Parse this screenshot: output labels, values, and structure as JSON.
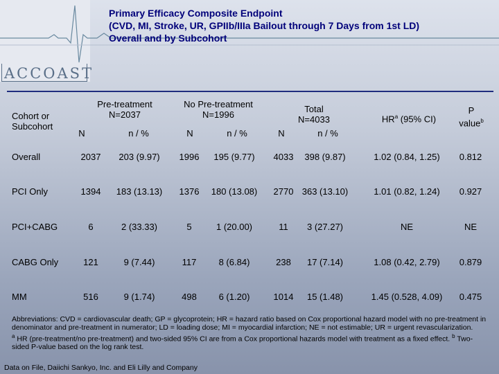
{
  "logo": {
    "text": "ACCOAST"
  },
  "title": {
    "line1": "Primary Efficacy Composite Endpoint",
    "line2": "(CVD, MI, Stroke, UR, GPIIb/IIIa Bailout through 7 Days from 1st LD)",
    "line3": "Overall and by Subcohort"
  },
  "table": {
    "headers": {
      "cohort_line1": "Cohort or",
      "cohort_line2": "Subcohort",
      "pre_line1": "Pre-treatment",
      "pre_line2": "N=2037",
      "pre_n": "N",
      "pre_pct": "n / %",
      "nopre_line1": "No Pre-treatment",
      "nopre_line2": "N=1996",
      "nopre_n": "N",
      "nopre_pct": "n / %",
      "total_line1": "Total",
      "total_line2": "N=4033",
      "total_n": "N",
      "total_pct": "n / %",
      "hr": "HR",
      "hr_sup": "a",
      "hr_rest": " (95% CI)",
      "p_line1": "P",
      "p_line2": "value",
      "p_sup": "b"
    },
    "rows": [
      {
        "label": "Overall",
        "pre_n": "2037",
        "pre_pct": "203 (9.97)",
        "nopre_n": "1996",
        "nopre_pct": "195 (9.77)",
        "total_n": "4033",
        "total_pct": "398 (9.87)",
        "hr": "1.02 (0.84, 1.25)",
        "p": "0.812"
      },
      {
        "label": "PCI Only",
        "pre_n": "1394",
        "pre_pct": "183 (13.13)",
        "nopre_n": "1376",
        "nopre_pct": "180 (13.08)",
        "total_n": "2770",
        "total_pct": "363 (13.10)",
        "hr": "1.01 (0.82, 1.24)",
        "p": "0.927"
      },
      {
        "label": "PCI+CABG",
        "pre_n": "6",
        "pre_pct": "2 (33.33)",
        "nopre_n": "5",
        "nopre_pct": "1 (20.00)",
        "total_n": "11",
        "total_pct": "3 (27.27)",
        "hr": "NE",
        "p": "NE"
      },
      {
        "label": "CABG Only",
        "pre_n": "121",
        "pre_pct": "9 (7.44)",
        "nopre_n": "117",
        "nopre_pct": "8 (6.84)",
        "total_n": "238",
        "total_pct": "17 (7.14)",
        "hr": "1.08 (0.42, 2.79)",
        "p": "0.879"
      },
      {
        "label": "MM",
        "pre_n": "516",
        "pre_pct": "9 (1.74)",
        "nopre_n": "498",
        "nopre_pct": "6 (1.20)",
        "total_n": "1014",
        "total_pct": "15 (1.48)",
        "hr": "1.45 (0.528, 4.09)",
        "p": "0.475"
      }
    ]
  },
  "footnote": {
    "abbreviations": "Abbreviations:  CVD = cardiovascular death; GP = glycoprotein; HR = hazard ratio based on Cox proportional hazard model with no pre-treatment in denominator and  pre-treatment  in numerator; LD = loading dose; MI = myocardial infarction; NE = not estimable; UR = urgent revascularization.",
    "note_a_mark": "a",
    "note_a": "  HR (pre-treatment/no pre-treatment) and two-sided 95% CI are from a Cox proportional hazards model with treatment as a fixed effect. ",
    "note_b_mark": "b",
    "note_b": "  Two-sided P-value based on the log rank test.",
    "source": "Data on File, Daiichi Sankyo, Inc. and Eli Lilly and Company"
  },
  "colors": {
    "title": "#00007a",
    "rule": "#1e2c7e",
    "logo": "#5a6f88"
  }
}
